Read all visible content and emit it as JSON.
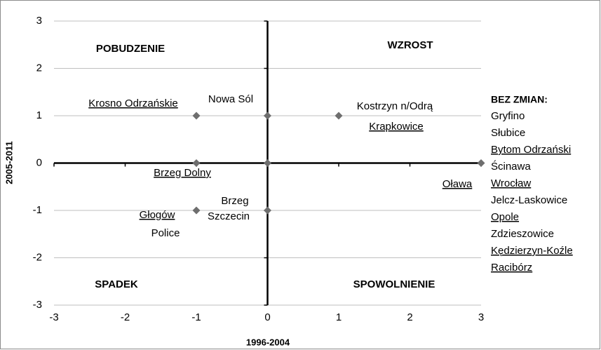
{
  "chart_data": {
    "type": "scatter",
    "x_label": "1996-2004",
    "y_label": "2005-2011",
    "series": [
      {
        "color": "#6e6e6e",
        "x": [
          -1,
          0,
          1,
          -1,
          0,
          3,
          -1,
          0
        ],
        "values": [
          1,
          1,
          1,
          0,
          0,
          0,
          -1,
          -1
        ]
      }
    ],
    "xlim": [
      -3,
      3
    ],
    "xticks": [
      -3,
      -2,
      -1,
      0,
      1,
      2,
      3
    ],
    "ylim": [
      -3,
      3
    ],
    "yticks": [
      -3,
      -2,
      -1,
      0,
      1,
      2,
      3
    ],
    "grid": true,
    "quadrant_labels": [
      "POBUDZENIE",
      "WZROST",
      "SPADEK",
      "SPOWOLNIENIE"
    ],
    "annotations": [
      {
        "text": "Krosno Odrzańskie",
        "underline": true
      },
      {
        "text": "Nowa Sól",
        "underline": false
      },
      {
        "text": "Kostrzyn n/Odrą",
        "underline": false
      },
      {
        "text": "Krapkowice",
        "underline": true
      },
      {
        "text": "Brzeg Dolny",
        "underline": true
      },
      {
        "text": "Oława",
        "underline": true
      },
      {
        "text": "Brzeg",
        "underline": false
      },
      {
        "text": "Głogów",
        "underline": true
      },
      {
        "text": "Szczecin",
        "underline": false
      },
      {
        "text": "Police",
        "underline": false
      }
    ],
    "side_list": {
      "title": "BEZ ZMIAN:",
      "items": [
        {
          "text": "Gryfino",
          "underline": false
        },
        {
          "text": "Słubice",
          "underline": false
        },
        {
          "text": "Bytom Odrzański",
          "underline": true
        },
        {
          "text": "Ścinawa",
          "underline": false
        },
        {
          "text": "Wrocław",
          "underline": true
        },
        {
          "text": "Jelcz-Laskowice",
          "underline": false
        },
        {
          "text": "Opole",
          "underline": true
        },
        {
          "text": "Zdzieszowice",
          "underline": false
        },
        {
          "text": "Kędzierzyn-Koźle",
          "underline": true
        },
        {
          "text": "Racibórz",
          "underline": true
        }
      ]
    }
  }
}
